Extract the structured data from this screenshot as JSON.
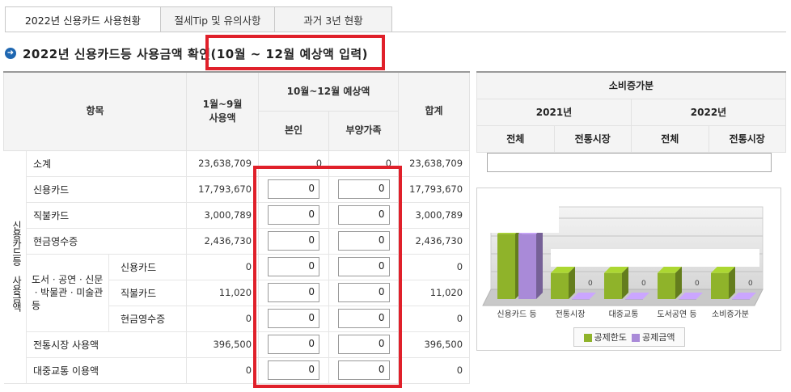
{
  "tabs": [
    {
      "label": "2022년 신용카드 사용현황",
      "active": true
    },
    {
      "label": "절세Tip 및 유의사항",
      "active": false
    },
    {
      "label": "과거 3년 현황",
      "active": false
    }
  ],
  "section_title": "2022년 신용카드등 사용금액 확인(10월 ~ 12월 예상액 입력)",
  "main_table": {
    "headers": {
      "item": "항목",
      "jan_sep": "1월~9월\n사용액",
      "oct_dec": "10월~12월 예상액",
      "self": "본인",
      "dependent": "부양가족",
      "total": "합계"
    },
    "group_label": "신용카드등 사용금액",
    "sub_group_label": "도서ㆍ공연ㆍ신문ㆍ박물관ㆍ미술관 등",
    "rows": [
      {
        "label": "소계",
        "jan_sep": "23,638,709",
        "self": "0",
        "dependent": "0",
        "total": "23,638,709"
      },
      {
        "label": "신용카드",
        "jan_sep": "17,793,670",
        "self": "0",
        "dependent": "0",
        "total": "17,793,670"
      },
      {
        "label": "직불카드",
        "jan_sep": "3,000,789",
        "self": "0",
        "dependent": "0",
        "total": "3,000,789"
      },
      {
        "label": "현금영수증",
        "jan_sep": "2,436,730",
        "self": "0",
        "dependent": "0",
        "total": "2,436,730"
      },
      {
        "label": "신용카드",
        "jan_sep": "0",
        "self": "0",
        "dependent": "0",
        "total": "0"
      },
      {
        "label": "직불카드",
        "jan_sep": "11,020",
        "self": "0",
        "dependent": "0",
        "total": "11,020"
      },
      {
        "label": "현금영수증",
        "jan_sep": "0",
        "self": "0",
        "dependent": "0",
        "total": "0"
      },
      {
        "label": "전통시장 사용액",
        "jan_sep": "396,500",
        "self": "0",
        "dependent": "0",
        "total": "396,500"
      },
      {
        "label": "대중교통 이용액",
        "jan_sep": "0",
        "self": "0",
        "dependent": "0",
        "total": "0"
      }
    ]
  },
  "side_table": {
    "title": "소비증가분",
    "year1": "2021년",
    "year2": "2022년",
    "all": "전체",
    "market": "전통시장"
  },
  "chart_data": {
    "type": "bar",
    "categories": [
      "신용카드 등",
      "전통시장",
      "대중교통",
      "도서공연 등",
      "소비증가분"
    ],
    "series": [
      {
        "name": "공제한도",
        "color": "#8fb32a",
        "values": [
          2500000,
          1000000,
          1000000,
          1000000,
          1000000
        ]
      },
      {
        "name": "공제금액",
        "color": "#a98ad8",
        "values": [
          2500000,
          0,
          0,
          0,
          0
        ]
      }
    ],
    "data_labels": [
      "",
      "0",
      "0",
      "0",
      "0"
    ],
    "grid": true,
    "legend": "bottom"
  }
}
